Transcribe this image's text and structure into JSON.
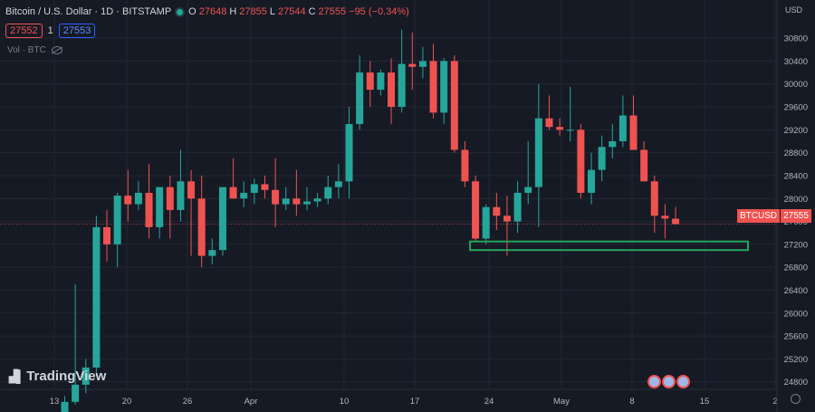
{
  "header": {
    "symbol_title": "Bitcoin / U.S. Dollar · 1D · BITSTAMP",
    "o_label": "O",
    "o_value": "27648",
    "h_label": "H",
    "h_value": "27855",
    "l_label": "L",
    "l_value": "27544",
    "c_label": "C",
    "c_value": "27555",
    "change": "−95 (−0.34%)",
    "bid": "27552",
    "spread": "1",
    "ask": "27553",
    "volume_label": "Vol · BTC",
    "currency": "USD"
  },
  "logo_text": "TradingView",
  "price_tag": {
    "symbol": "BTCUSD",
    "value": "27555"
  },
  "colors": {
    "background": "#161a25",
    "up": "#26a69a",
    "down": "#ef5350",
    "zone": "#23a559",
    "grid": "#232733"
  },
  "chart_data": {
    "type": "candlestick",
    "x_tick_labels": [
      "13",
      "20",
      "26",
      "Apr",
      "10",
      "17",
      "24",
      "May",
      "8",
      "15",
      "2"
    ],
    "y_ticks": [
      24800,
      25200,
      25600,
      26000,
      26400,
      26800,
      27200,
      27600,
      28000,
      28400,
      28800,
      29200,
      29600,
      30000,
      30400,
      30800
    ],
    "ylim": [
      24550,
      31150
    ],
    "current_price": 27555,
    "support_zone": {
      "low": 27100,
      "high": 27250,
      "start_candle": 39,
      "end_candle": 67
    },
    "candles": [
      [
        24120,
        24550,
        24120,
        24450
      ],
      [
        24450,
        26500,
        24400,
        24750
      ],
      [
        24750,
        25200,
        24600,
        25050
      ],
      [
        25050,
        27700,
        24900,
        27500
      ],
      [
        27500,
        27800,
        26900,
        27200
      ],
      [
        27200,
        28100,
        26800,
        28050
      ],
      [
        28050,
        28500,
        27600,
        27900
      ],
      [
        27900,
        28300,
        27800,
        28100
      ],
      [
        28100,
        28600,
        27300,
        27500
      ],
      [
        27500,
        28200,
        27300,
        28200
      ],
      [
        28200,
        28400,
        27300,
        27800
      ],
      [
        27800,
        28850,
        27600,
        28300
      ],
      [
        28300,
        28500,
        27000,
        28000
      ],
      [
        28000,
        28400,
        26800,
        27000
      ],
      [
        27000,
        27300,
        26850,
        27100
      ],
      [
        27100,
        28200,
        27000,
        28200
      ],
      [
        28200,
        28700,
        28000,
        28000
      ],
      [
        28000,
        28300,
        27850,
        28100
      ],
      [
        28100,
        28350,
        27900,
        28250
      ],
      [
        28250,
        28400,
        28000,
        28150
      ],
      [
        28150,
        28700,
        27500,
        27900
      ],
      [
        27900,
        28200,
        27800,
        28000
      ],
      [
        28000,
        28500,
        27700,
        27900
      ],
      [
        27900,
        28200,
        27800,
        27950
      ],
      [
        27950,
        28100,
        27850,
        28000
      ],
      [
        28000,
        28400,
        27900,
        28200
      ],
      [
        28200,
        28600,
        28000,
        28300
      ],
      [
        28300,
        29600,
        28000,
        29300
      ],
      [
        29300,
        30500,
        29200,
        30200
      ],
      [
        30200,
        30400,
        29600,
        29900
      ],
      [
        29900,
        30250,
        29800,
        30200
      ],
      [
        30200,
        30450,
        29300,
        29600
      ],
      [
        29600,
        30950,
        29500,
        30350
      ],
      [
        30350,
        30900,
        29900,
        30300
      ],
      [
        30300,
        30650,
        30100,
        30400
      ],
      [
        30400,
        30700,
        29400,
        29500
      ],
      [
        29500,
        30450,
        29300,
        30400
      ],
      [
        30400,
        30500,
        28800,
        28850
      ],
      [
        28850,
        29000,
        28200,
        28300
      ],
      [
        28300,
        28400,
        27250,
        27300
      ],
      [
        27300,
        27900,
        27200,
        27850
      ],
      [
        27850,
        28100,
        27450,
        27700
      ],
      [
        27700,
        28050,
        27000,
        27600
      ],
      [
        27600,
        28300,
        27400,
        28100
      ],
      [
        28100,
        29000,
        27900,
        28200
      ],
      [
        28200,
        30000,
        27500,
        29400
      ],
      [
        29400,
        29800,
        29200,
        29250
      ],
      [
        29250,
        29400,
        29100,
        29200
      ],
      [
        29200,
        29950,
        29000,
        29200
      ],
      [
        29200,
        29300,
        28000,
        28100
      ],
      [
        28100,
        28800,
        27900,
        28500
      ],
      [
        28500,
        29100,
        28300,
        28900
      ],
      [
        28900,
        29300,
        28700,
        29000
      ],
      [
        29000,
        29800,
        28900,
        29450
      ],
      [
        29450,
        29800,
        28850,
        28850
      ],
      [
        28850,
        29000,
        28300,
        28300
      ],
      [
        28300,
        28400,
        27400,
        27700
      ],
      [
        27700,
        27900,
        27300,
        27650
      ],
      [
        27648,
        27855,
        27544,
        27555
      ]
    ]
  }
}
